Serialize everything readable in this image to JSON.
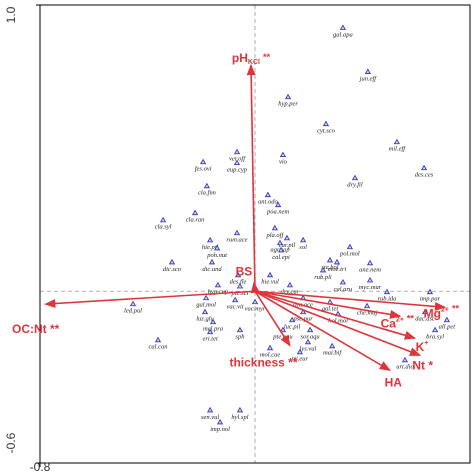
{
  "chart_data": {
    "type": "biplot",
    "xlim": [
      -0.8,
      0.8
    ],
    "ylim": [
      -0.6,
      1.0
    ],
    "xticks": [
      -0.8
    ],
    "yticks": [
      -0.6,
      {
        "value": 1,
        "label": "1.0"
      }
    ],
    "point_color": "#2b2bb0",
    "vector_color": "#e0343b",
    "species": {
      "names": [
        "gal.apa",
        "jun.eff",
        "hyp.per",
        "cyt.sco",
        "mil.eff",
        "ver.off",
        "eup.cyp",
        "vio",
        "fes.ovi",
        "dry.fil",
        "des.ces",
        "cla.fim",
        "ant.odo",
        "poa.nem",
        "cla.ran",
        "cla.syl",
        "pla.off",
        "rum.ace",
        "car.pil",
        "agr.cap",
        "sol",
        "hie.pil",
        "poh.nut",
        "cal.epi",
        "pol.mol",
        "ste.hol",
        "moe.tri",
        "ane.nem",
        "dic.sco",
        "dic.und",
        "des.fle",
        "hie.vul",
        "rub.pli",
        "cal.aru",
        "myc.mur",
        "rub.ida",
        "imp.par",
        "hyp.cup",
        "pic.sci",
        "dry.car",
        "led.pal",
        "gal.mol",
        "vac.vit",
        "vac.myr",
        "ora.ace",
        "gal.tet",
        "che.maj",
        "dac.asc",
        "all.pet",
        "bra.syl",
        "luz.glu",
        "pse.pur",
        "hol.mol",
        "mel.pra",
        "luc.pil",
        "sph",
        "eri.tet",
        "pte.aqu",
        "sor.aqu",
        "cal.can",
        "mol.cae",
        "lys.vul",
        "mai.bif",
        "tri.eur",
        "urt.dio",
        "sen.vul",
        "hyl.spl",
        "imp.nol"
      ],
      "x": [
        0.327,
        0.42,
        0.123,
        0.264,
        0.528,
        -0.067,
        -0.067,
        0.104,
        -0.193,
        0.372,
        0.629,
        -0.179,
        0.048,
        0.086,
        -0.223,
        -0.342,
        0.074,
        -0.067,
        0.119,
        0.093,
        0.179,
        -0.167,
        -0.141,
        0.097,
        0.353,
        0.279,
        0.305,
        0.428,
        -0.309,
        -0.16,
        -0.063,
        0.056,
        0.253,
        0.327,
        0.428,
        0.491,
        0.651,
        -0.138,
        -0.056,
        0.13,
        -0.454,
        -0.182,
        -0.074,
        0,
        0.179,
        0.279,
        0.417,
        0.633,
        0.714,
        0.67,
        -0.186,
        0.179,
        0.309,
        -0.156,
        0.138,
        -0.056,
        -0.167,
        0.104,
        0.205,
        -0.361,
        0.056,
        0.197,
        0.287,
        0.167,
        0.558,
        -0.167,
        -0.056,
        -0.13
      ],
      "y": [
        0.92,
        0.766,
        0.678,
        0.584,
        0.521,
        0.486,
        0.448,
        0.476,
        0.451,
        0.395,
        0.43,
        0.367,
        0.336,
        0.301,
        0.273,
        0.248,
        0.22,
        0.203,
        0.185,
        0.168,
        0.178,
        0.178,
        0.15,
        0.143,
        0.154,
        0.108,
        0.101,
        0.098,
        0.101,
        0.101,
        0.056,
        0.056,
        0.073,
        0.031,
        0.038,
        -0.003,
        -0.003,
        0.021,
        0.017,
        0.021,
        -0.045,
        -0.024,
        -0.031,
        -0.038,
        -0.024,
        -0.038,
        -0.052,
        -0.073,
        -0.101,
        -0.136,
        -0.073,
        -0.073,
        -0.08,
        -0.108,
        -0.101,
        -0.136,
        -0.143,
        -0.136,
        -0.136,
        -0.171,
        -0.199,
        -0.178,
        -0.192,
        -0.213,
        -0.241,
        -0.416,
        -0.416,
        -0.458
      ]
    },
    "vectors": [
      {
        "label": "pH",
        "sub": "KCl",
        "suffix": "**",
        "x": -0.015,
        "y": 0.79
      },
      {
        "label": "BS",
        "x": -0.004,
        "y": 0.03
      },
      {
        "label": "OC:Nt **",
        "x": -0.78,
        "y": -0.045
      },
      {
        "label": "Mg",
        "sup": "2+",
        "suffix": "**",
        "x": 0.707,
        "y": -0.056
      },
      {
        "label": "Ca",
        "sup": "2+",
        "suffix": "**",
        "x": 0.54,
        "y": -0.087
      },
      {
        "label": "K",
        "sup": "+",
        "x": 0.595,
        "y": -0.164
      },
      {
        "label": "Nt *",
        "x": 0.614,
        "y": -0.224
      },
      {
        "label": "HA",
        "x": 0.502,
        "y": -0.276
      },
      {
        "label": "thickness **",
        "x": 0.13,
        "y": -0.19
      }
    ]
  }
}
